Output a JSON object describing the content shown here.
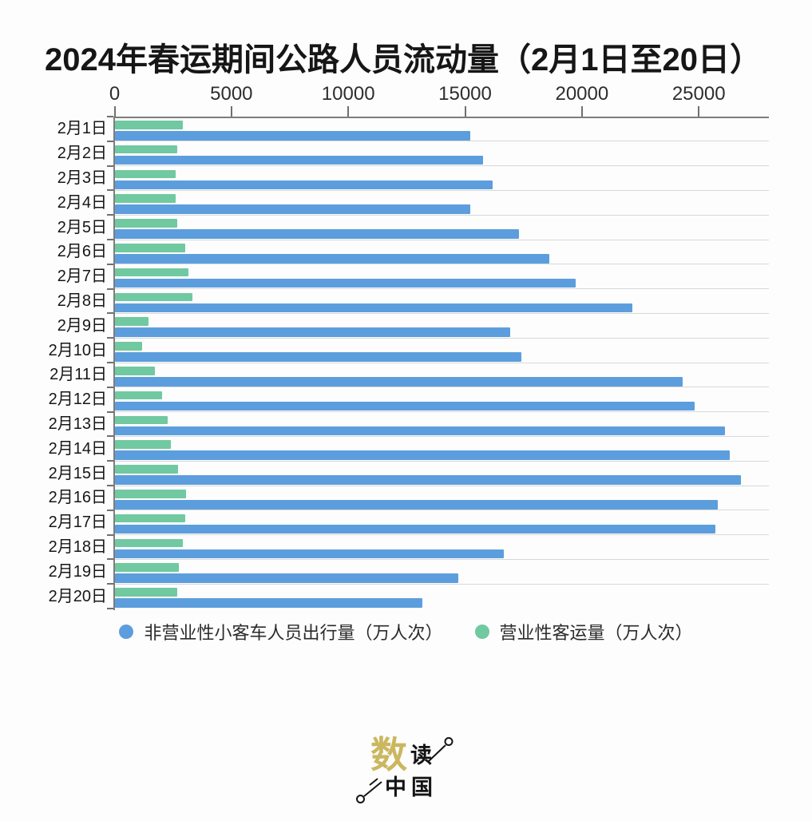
{
  "title": "2024年春运期间公路人员流动量（2月1日至20日）",
  "chart_data": {
    "type": "bar",
    "orientation": "horizontal",
    "title": "2024年春运期间公路人员流动量（2月1日至20日）",
    "unit": "万人次",
    "categories": [
      "2月1日",
      "2月2日",
      "2月3日",
      "2月4日",
      "2月5日",
      "2月6日",
      "2月7日",
      "2月8日",
      "2月9日",
      "2月10日",
      "2月11日",
      "2月12日",
      "2月13日",
      "2月14日",
      "2月15日",
      "2月16日",
      "2月17日",
      "2月18日",
      "2月19日",
      "2月20日"
    ],
    "series": [
      {
        "name": "非营业性小客车人员出行量（万人次）",
        "color": "#5C9EDD",
        "values": [
          15200,
          15750,
          16150,
          15200,
          17300,
          18600,
          19700,
          22150,
          16900,
          17400,
          24300,
          24800,
          26100,
          26300,
          26800,
          25800,
          25700,
          16650,
          14700,
          13150
        ]
      },
      {
        "name": "营业性客运量（万人次）",
        "color": "#70C9A0",
        "values": [
          2900,
          2650,
          2600,
          2600,
          2650,
          3000,
          3150,
          3300,
          1450,
          1150,
          1700,
          2000,
          2250,
          2400,
          2700,
          3050,
          3000,
          2900,
          2750,
          2650
        ]
      }
    ],
    "xlim": [
      0,
      28000
    ],
    "xticks": [
      0,
      5000,
      10000,
      15000,
      20000,
      25000
    ],
    "grid": "row-separator-lines",
    "legend_position": "bottom",
    "row_order": [
      1,
      0
    ]
  },
  "legend": {
    "items": [
      {
        "label": "非营业性小客车人员出行量（万人次）",
        "color": "#5C9EDD"
      },
      {
        "label": "营业性客运量（万人次）",
        "color": "#70C9A0"
      }
    ]
  },
  "logo": {
    "main_char": "数",
    "second_char": "读",
    "bottom_text": "中国",
    "main_color": "#CBB760",
    "ink_color": "#141414"
  }
}
